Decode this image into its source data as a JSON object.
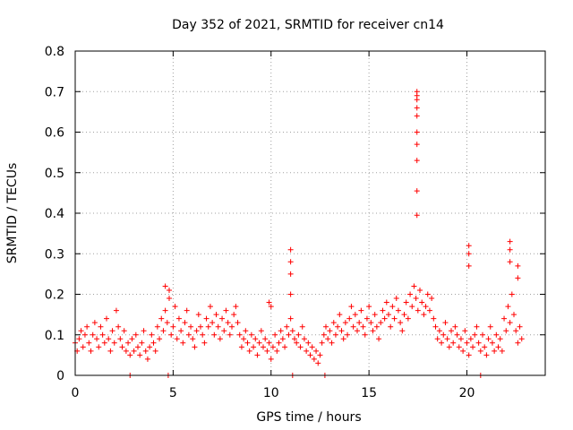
{
  "chart_data": {
    "type": "scatter",
    "title": "Day 352 of 2021, SRMTID for receiver cn14",
    "xlabel": "GPS time / hours",
    "ylabel": "SRMTID / TECUs",
    "xlim": [
      0,
      24
    ],
    "ylim": [
      0,
      0.8
    ],
    "xticks": [
      0,
      5,
      10,
      15,
      20
    ],
    "xtick_labels": [
      "0",
      "5",
      "10",
      "15",
      "20"
    ],
    "yticks": [
      0,
      0.1,
      0.2,
      0.3,
      0.4,
      0.5,
      0.6,
      0.7,
      0.8
    ],
    "ytick_labels": [
      "0",
      "0.1",
      "0.2",
      "0.3",
      "0.4",
      "0.5",
      "0.6",
      "0.7",
      "0.8"
    ],
    "grid": true,
    "marker": "+",
    "marker_color": "#ff0000",
    "series": [
      {
        "name": "SRMTID",
        "x": [
          0.0,
          0.1,
          0.2,
          0.3,
          0.4,
          0.5,
          0.6,
          0.7,
          0.8,
          0.9,
          1.0,
          1.1,
          1.2,
          1.3,
          1.4,
          1.5,
          1.6,
          1.7,
          1.8,
          1.9,
          2.0,
          2.1,
          2.2,
          2.3,
          2.4,
          2.5,
          2.6,
          2.7,
          2.8,
          2.9,
          3.0,
          3.1,
          3.2,
          3.3,
          3.4,
          3.5,
          3.6,
          3.7,
          3.8,
          3.9,
          4.0,
          4.1,
          4.2,
          4.3,
          4.4,
          4.5,
          4.6,
          4.7,
          4.8,
          4.9,
          5.0,
          5.1,
          5.2,
          5.3,
          5.4,
          5.5,
          5.6,
          5.7,
          5.8,
          5.9,
          6.0,
          6.1,
          6.2,
          6.3,
          6.4,
          6.5,
          6.6,
          6.7,
          6.8,
          6.9,
          7.0,
          7.1,
          7.2,
          7.3,
          7.4,
          7.5,
          7.6,
          7.7,
          7.8,
          7.9,
          8.0,
          8.1,
          8.2,
          8.3,
          8.4,
          8.5,
          8.6,
          8.7,
          8.8,
          8.9,
          9.0,
          9.1,
          9.2,
          9.3,
          9.4,
          9.5,
          9.6,
          9.7,
          9.8,
          9.9,
          10.0,
          10.1,
          10.2,
          10.3,
          10.4,
          10.5,
          10.6,
          10.7,
          10.8,
          10.9,
          11.0,
          11.1,
          11.2,
          11.3,
          11.4,
          11.5,
          11.6,
          11.7,
          11.8,
          11.9,
          12.0,
          12.1,
          12.2,
          12.3,
          12.4,
          12.5,
          12.6,
          12.7,
          12.8,
          12.9,
          13.0,
          13.1,
          13.2,
          13.3,
          13.4,
          13.5,
          13.6,
          13.7,
          13.8,
          13.9,
          14.0,
          14.1,
          14.2,
          14.3,
          14.4,
          14.5,
          14.6,
          14.7,
          14.8,
          14.9,
          15.0,
          15.1,
          15.2,
          15.3,
          15.4,
          15.5,
          15.6,
          15.7,
          15.8,
          15.9,
          16.0,
          16.1,
          16.2,
          16.3,
          16.4,
          16.5,
          16.6,
          16.7,
          16.8,
          16.9,
          17.0,
          17.1,
          17.2,
          17.3,
          17.4,
          17.5,
          17.6,
          17.7,
          17.8,
          17.9,
          18.0,
          18.1,
          18.2,
          18.3,
          18.4,
          18.5,
          18.6,
          18.7,
          18.8,
          18.9,
          19.0,
          19.1,
          19.2,
          19.3,
          19.4,
          19.5,
          19.6,
          19.7,
          19.8,
          19.9,
          20.0,
          20.1,
          20.2,
          20.3,
          20.4,
          20.5,
          20.6,
          20.7,
          20.8,
          20.9,
          21.0,
          21.1,
          21.2,
          21.3,
          21.4,
          21.5,
          21.6,
          21.7,
          21.8,
          21.9,
          22.0,
          22.1,
          22.2,
          22.3,
          22.4,
          22.5,
          22.6,
          22.7,
          22.8,
          17.45,
          17.45,
          17.45,
          17.45,
          17.45,
          17.45,
          17.45,
          17.45,
          17.45,
          17.45,
          11.0,
          11.0,
          11.0,
          11.0,
          9.9,
          10.0,
          20.1,
          20.1,
          20.1,
          22.2,
          22.2,
          22.2,
          22.6,
          22.6,
          2.8,
          4.75,
          11.1,
          12.75,
          20.7,
          4.6,
          4.8
        ],
        "y": [
          0.08,
          0.06,
          0.09,
          0.11,
          0.07,
          0.1,
          0.12,
          0.08,
          0.06,
          0.1,
          0.13,
          0.09,
          0.07,
          0.12,
          0.1,
          0.08,
          0.14,
          0.09,
          0.06,
          0.11,
          0.08,
          0.16,
          0.12,
          0.09,
          0.07,
          0.11,
          0.06,
          0.08,
          0.05,
          0.09,
          0.06,
          0.1,
          0.07,
          0.05,
          0.08,
          0.11,
          0.06,
          0.04,
          0.07,
          0.1,
          0.08,
          0.06,
          0.12,
          0.09,
          0.14,
          0.11,
          0.16,
          0.13,
          0.19,
          0.1,
          0.12,
          0.17,
          0.09,
          0.14,
          0.11,
          0.08,
          0.13,
          0.16,
          0.1,
          0.12,
          0.09,
          0.07,
          0.11,
          0.15,
          0.12,
          0.1,
          0.08,
          0.14,
          0.12,
          0.17,
          0.13,
          0.1,
          0.15,
          0.12,
          0.09,
          0.14,
          0.11,
          0.16,
          0.13,
          0.1,
          0.12,
          0.15,
          0.17,
          0.13,
          0.1,
          0.07,
          0.09,
          0.11,
          0.08,
          0.06,
          0.1,
          0.07,
          0.09,
          0.05,
          0.08,
          0.11,
          0.07,
          0.09,
          0.06,
          0.08,
          0.04,
          0.07,
          0.1,
          0.06,
          0.08,
          0.11,
          0.09,
          0.07,
          0.12,
          0.1,
          0.14,
          0.11,
          0.09,
          0.08,
          0.1,
          0.07,
          0.12,
          0.09,
          0.06,
          0.08,
          0.05,
          0.07,
          0.04,
          0.06,
          0.03,
          0.05,
          0.08,
          0.1,
          0.12,
          0.09,
          0.11,
          0.08,
          0.13,
          0.1,
          0.12,
          0.15,
          0.11,
          0.09,
          0.13,
          0.1,
          0.14,
          0.17,
          0.12,
          0.15,
          0.11,
          0.13,
          0.16,
          0.12,
          0.1,
          0.14,
          0.17,
          0.13,
          0.11,
          0.15,
          0.12,
          0.09,
          0.13,
          0.16,
          0.14,
          0.18,
          0.15,
          0.12,
          0.17,
          0.14,
          0.19,
          0.16,
          0.13,
          0.11,
          0.15,
          0.18,
          0.14,
          0.2,
          0.17,
          0.22,
          0.19,
          0.16,
          0.21,
          0.18,
          0.15,
          0.17,
          0.2,
          0.16,
          0.19,
          0.14,
          0.12,
          0.09,
          0.11,
          0.08,
          0.1,
          0.13,
          0.09,
          0.07,
          0.11,
          0.08,
          0.12,
          0.1,
          0.07,
          0.09,
          0.06,
          0.11,
          0.08,
          0.05,
          0.09,
          0.07,
          0.1,
          0.12,
          0.08,
          0.06,
          0.1,
          0.07,
          0.05,
          0.09,
          0.12,
          0.08,
          0.06,
          0.1,
          0.07,
          0.09,
          0.06,
          0.14,
          0.11,
          0.17,
          0.13,
          0.2,
          0.15,
          0.11,
          0.08,
          0.12,
          0.09,
          0.7,
          0.69,
          0.68,
          0.66,
          0.64,
          0.6,
          0.57,
          0.53,
          0.455,
          0.395,
          0.31,
          0.28,
          0.25,
          0.2,
          0.18,
          0.17,
          0.32,
          0.3,
          0.27,
          0.33,
          0.31,
          0.28,
          0.27,
          0.24,
          0.0,
          0.0,
          0.0,
          0.0,
          0.0,
          0.22,
          0.21
        ]
      }
    ]
  }
}
